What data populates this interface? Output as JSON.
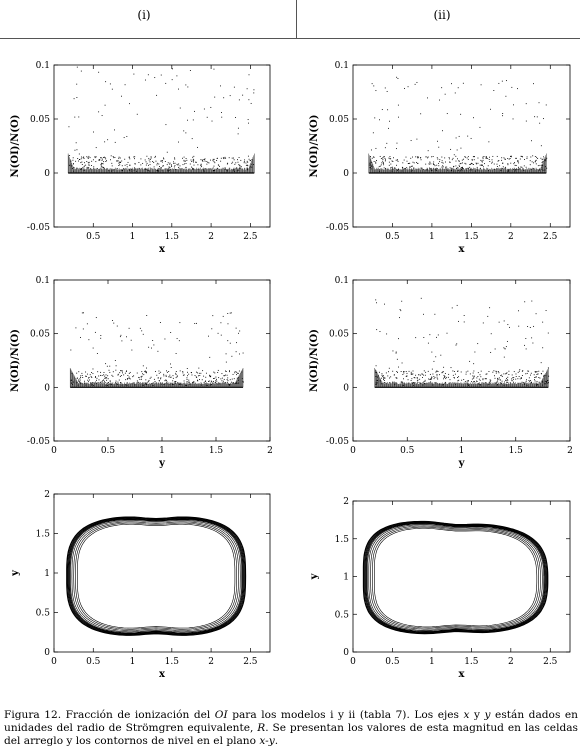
{
  "columns": [
    "(i)",
    "(ii)"
  ],
  "caption": {
    "prefix": "Figura 12. Fracción de ionización del ",
    "species": "OI",
    "middle1": " para los modelos i y ii (tabla 7). Los ejes ",
    "ax1": "x",
    "middle2": " y ",
    "ax2": "y",
    "middle3": " están dados en unidades del radio de Strömgren equivalente, ",
    "R": "R",
    "middle4": ". Se presentan los valores de esta magnitud en las celdas del arreglo y los contornos de nivel en el plano ",
    "plane": "x-y",
    "end": "."
  },
  "chart_data": [
    {
      "id": "i-x",
      "type": "scatter",
      "column": "(i)",
      "xlabel": "x",
      "ylabel": "N(OI)/N(O)",
      "xlim": [
        0,
        2.75
      ],
      "ylim": [
        -0.05,
        0.1
      ],
      "xticks": [
        "0.5",
        "1",
        "1.5",
        "2",
        "2.5"
      ],
      "yticks": [
        "-0.05",
        "0",
        "0.05",
        "0.1"
      ],
      "extent": [
        0.18,
        2.55
      ],
      "band_max": 0.015,
      "outlier_max": 0.1
    },
    {
      "id": "ii-x",
      "type": "scatter",
      "column": "(ii)",
      "xlabel": "x",
      "ylabel": "N(OI)/N(O)",
      "xlim": [
        0,
        2.75
      ],
      "ylim": [
        -0.05,
        0.1
      ],
      "xticks": [
        "0.5",
        "1",
        "1.5",
        "2",
        "2.5"
      ],
      "yticks": [
        "-0.05",
        "0",
        "0.05",
        "0.1"
      ],
      "extent": [
        0.2,
        2.45
      ],
      "band_max": 0.015,
      "outlier_max": 0.09
    },
    {
      "id": "i-y",
      "type": "scatter",
      "column": "(i)",
      "xlabel": "y",
      "ylabel": "N(OI)/N(O)",
      "xlim": [
        0,
        2
      ],
      "ylim": [
        -0.05,
        0.1
      ],
      "xticks": [
        "0",
        "0.5",
        "1",
        "1.5",
        "2"
      ],
      "yticks": [
        "-0.05",
        "0",
        "0.05",
        "0.1"
      ],
      "extent": [
        0.15,
        1.75
      ],
      "band_max": 0.015,
      "outlier_max": 0.07
    },
    {
      "id": "ii-y",
      "type": "scatter",
      "column": "(ii)",
      "xlabel": "y",
      "ylabel": "N(OI)/N(O)",
      "xlim": [
        0,
        2
      ],
      "ylim": [
        -0.05,
        0.1
      ],
      "xticks": [
        "0",
        "0.5",
        "1",
        "1.5",
        "2"
      ],
      "yticks": [
        "-0.05",
        "0",
        "0.05",
        "0.1"
      ],
      "extent": [
        0.2,
        1.8
      ],
      "band_max": 0.015,
      "outlier_max": 0.085
    },
    {
      "id": "i-contour",
      "type": "contour",
      "column": "(i)",
      "xlabel": "x",
      "ylabel": "y",
      "xlim": [
        0,
        2.75
      ],
      "ylim": [
        0,
        2
      ],
      "xticks": [
        "0",
        "0.5",
        "1",
        "1.5",
        "2",
        "2.5"
      ],
      "yticks": [
        "0",
        "0.5",
        "1",
        "1.5",
        "2"
      ],
      "center": [
        1.3,
        0.96
      ],
      "radius_x": 1.14,
      "radius_y": 0.76,
      "asymmetry": 0
    },
    {
      "id": "ii-contour",
      "type": "contour",
      "column": "(ii)",
      "xlabel": "x",
      "ylabel": "y",
      "xlim": [
        0,
        2.75
      ],
      "ylim": [
        0,
        2
      ],
      "xticks": [
        "0",
        "0.5",
        "1",
        "1.5",
        "2",
        "2.5"
      ],
      "yticks": [
        "0",
        "0.5",
        "1",
        "1.5",
        "2"
      ],
      "center": [
        1.3,
        0.98
      ],
      "radius_x": 1.17,
      "radius_y": 0.74,
      "asymmetry": 0.12
    }
  ]
}
